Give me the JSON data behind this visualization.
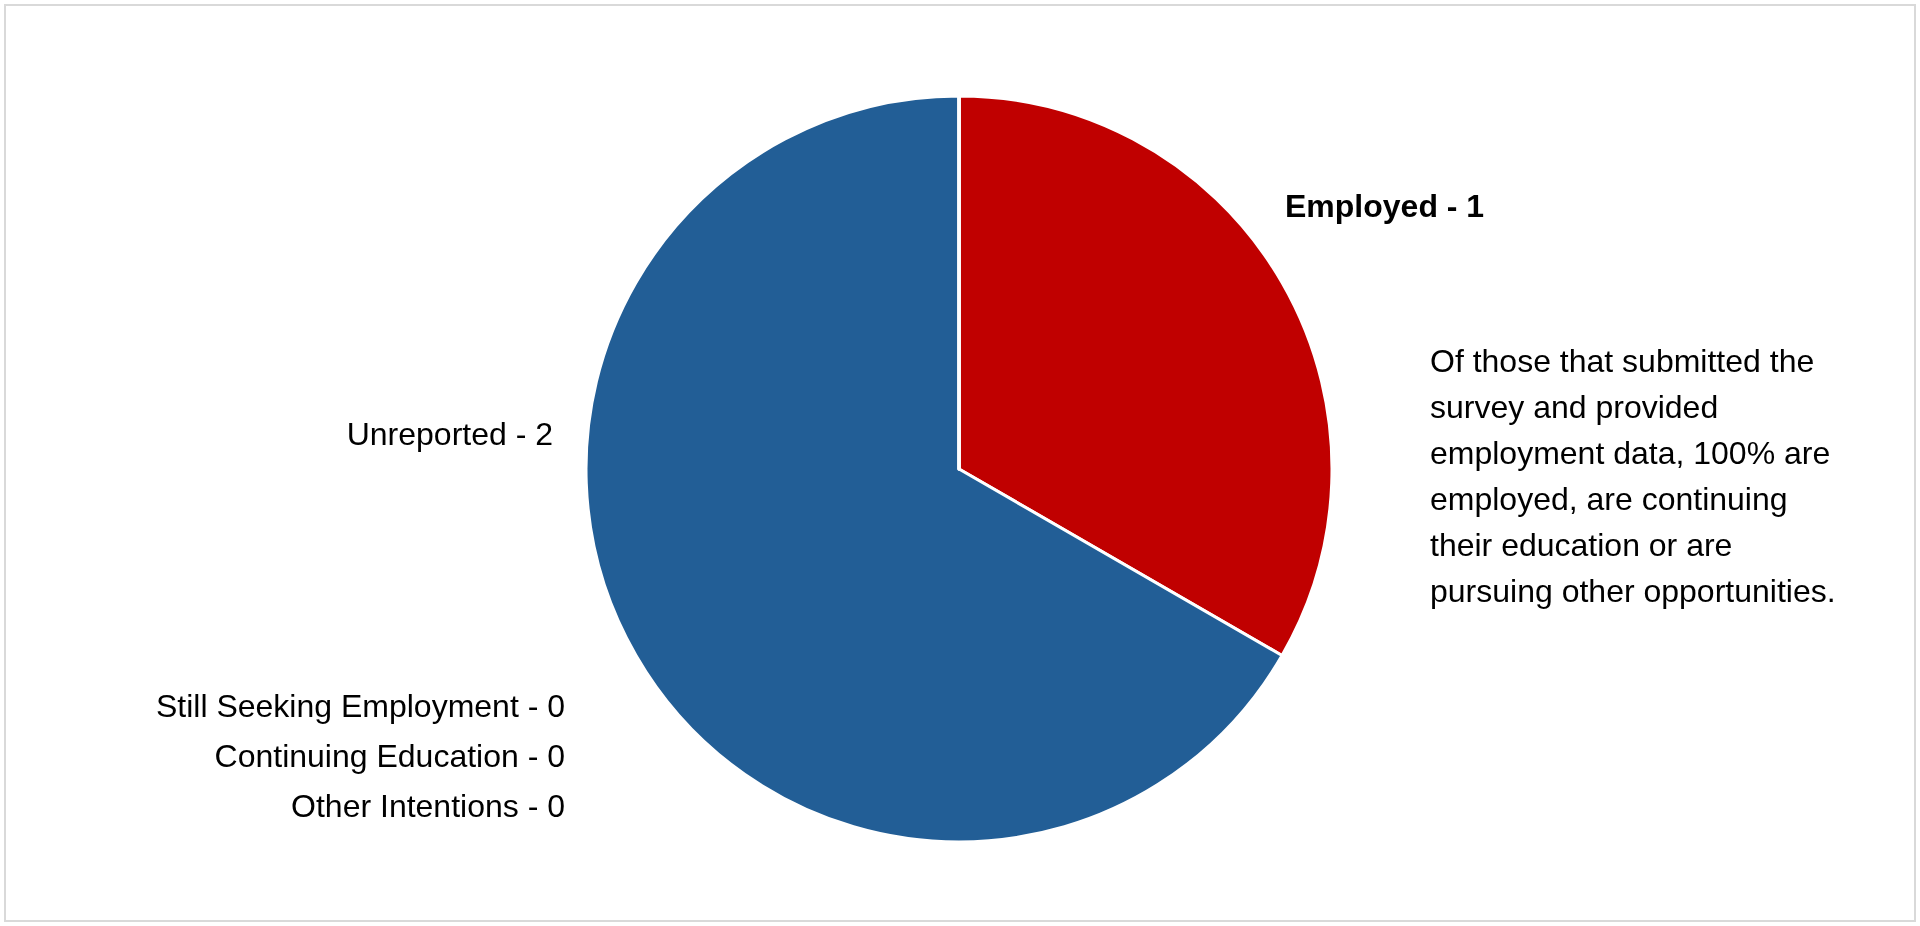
{
  "chart_data": {
    "type": "pie",
    "categories": [
      "Employed -",
      "Unreported -",
      "Still Seeking Employment -",
      "Continuing Education -",
      "Other Intentions -"
    ],
    "value_labels": [
      "1",
      "2",
      "0",
      "0",
      "0"
    ],
    "values": [
      1,
      2,
      0,
      0,
      0
    ],
    "colors": [
      "#c00000",
      "#225e96",
      "#7f7f7f",
      "#a5a5a5",
      "#ffc000"
    ],
    "legend": false,
    "annotations": [
      "Of those that submitted the survey and provided employment data, 100% are employed, are continuing their education or are pursuing other opportunities."
    ]
  }
}
